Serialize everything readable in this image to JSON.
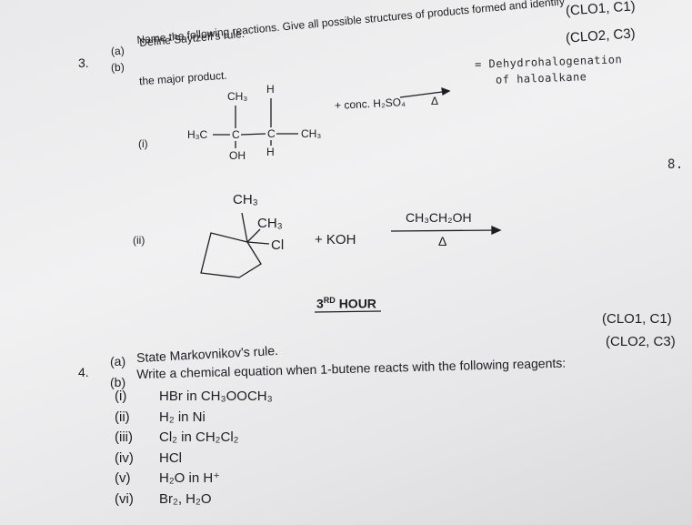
{
  "header": {
    "clo": [
      "(CLO1, C1)",
      "(CLO2, C3)"
    ]
  },
  "q3": {
    "number": "3.",
    "a": {
      "label": "(a)",
      "text": "Define Saytzeff's rule."
    },
    "b": {
      "label": "(b)",
      "lines": [
        "Name the following reactions. Give all possible structures of products formed and identify",
        "the major product."
      ]
    },
    "note": [
      "= Dehydrohalogenation",
      "of haloalkane"
    ],
    "mark": "8.",
    "i": {
      "label": "(i)",
      "atoms": [
        "CH₃",
        "H",
        "H₃C",
        "C",
        "C",
        "CH₃",
        "OH",
        "H"
      ],
      "reagent": "+ conc. H₂SO₄",
      "condition": "Δ"
    },
    "ii": {
      "label": "(ii)",
      "atoms": [
        "CH₃",
        "CH₃",
        "Cl"
      ],
      "reagent": "+ KOH",
      "solvent": "CH₃CH₂OH",
      "condition": "Δ"
    }
  },
  "hour": {
    "number": "3",
    "suffix": "RD",
    "word": "HOUR"
  },
  "q4": {
    "clo": [
      "(CLO1, C1)",
      "(CLO2, C3)"
    ],
    "number": "4.",
    "a": {
      "label": "(a)",
      "text": "State Markovnikov's rule."
    },
    "b": {
      "label": "(b)",
      "text": "Write a chemical equation when 1-butene reacts with the following reagents:"
    },
    "reagents": [
      [
        "(i)",
        "HBr in CH₃OOCH₃"
      ],
      [
        "(ii)",
        "H₂ in Ni"
      ],
      [
        "(iii)",
        "Cl₂ in CH₂Cl₂"
      ],
      [
        "(iv)",
        "HCl"
      ],
      [
        "(v)",
        "H₂O in H⁺"
      ],
      [
        "(vi)",
        "Br₂, H₂O"
      ]
    ]
  }
}
